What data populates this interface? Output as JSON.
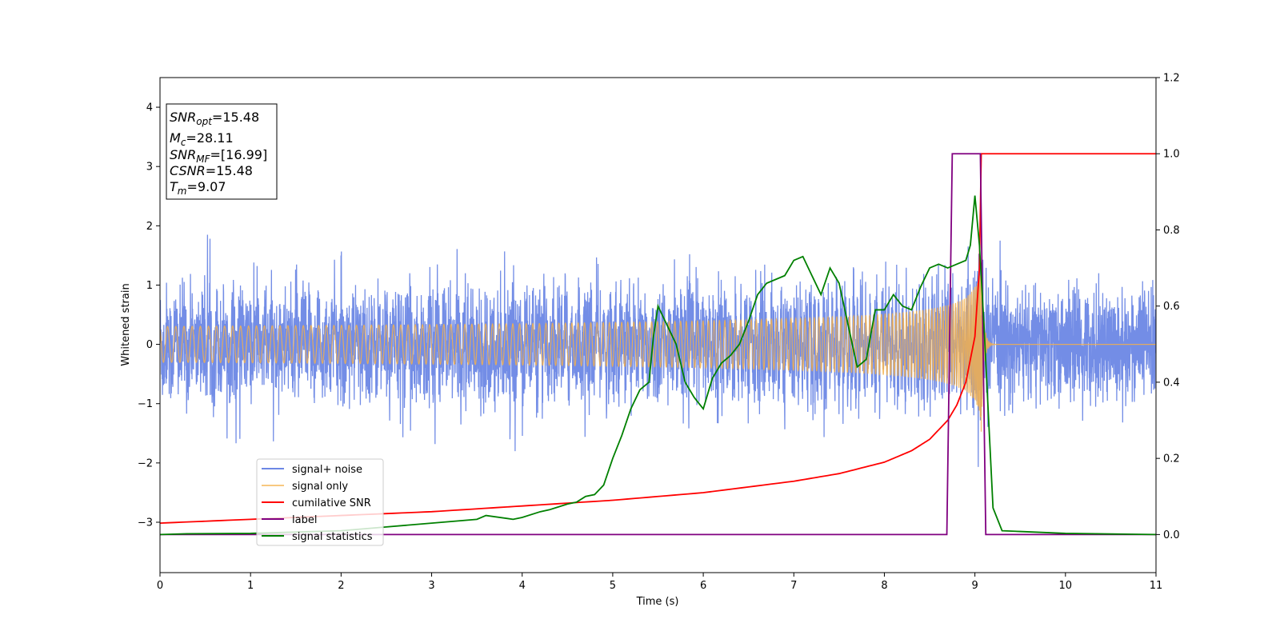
{
  "chart_data": {
    "type": "line",
    "xlabel": "Time (s)",
    "ylabel": "Whitened strain",
    "xlim": [
      0,
      11
    ],
    "ylim_left": [
      -3.85,
      4.5
    ],
    "ylim_right": [
      -0.1,
      1.2
    ],
    "x_ticks": [
      "0",
      "1",
      "2",
      "3",
      "4",
      "5",
      "6",
      "7",
      "8",
      "9",
      "10",
      "11"
    ],
    "y_ticks_left": [
      "−3",
      "−2",
      "−1",
      "0",
      "1",
      "2",
      "3",
      "4"
    ],
    "y_ticks_right": [
      "0.0",
      "0.2",
      "0.4",
      "0.6",
      "0.8",
      "1.0",
      "1.2"
    ],
    "grid": false,
    "legend_position": "lower-left",
    "info_box": {
      "lines": [
        {
          "sym": "SNR",
          "sub": "opt",
          "val": "=15.48"
        },
        {
          "sym": "M",
          "sub": "c",
          "val": "=28.11"
        },
        {
          "sym": "SNR",
          "sub": "MF",
          "val": "=[16.99]"
        },
        {
          "sym": "CSNR",
          "sub": "",
          "val": "=15.48"
        },
        {
          "sym": "T",
          "sub": "m",
          "val": "=9.07"
        }
      ]
    },
    "series": [
      {
        "name": "signal+ noise",
        "axis": "left",
        "color": "#6c87e5",
        "description_values": "noise fluctuating roughly between -1.2 and 1.2 with peaks to about ±1.7 across 0–11 s"
      },
      {
        "name": "signal only",
        "axis": "left",
        "color": "#f5b04a",
        "chirp_peak_time": 9.07,
        "chirp_peak_amplitude": 1.5
      },
      {
        "name": "cumilative SNR",
        "axis": "right",
        "color": "#ff0000",
        "x": [
          0,
          1,
          2,
          3,
          4,
          5,
          6,
          7,
          7.5,
          8,
          8.3,
          8.5,
          8.7,
          8.8,
          8.9,
          9.0,
          9.05,
          9.07,
          11
        ],
        "y": [
          0.03,
          0.04,
          0.05,
          0.06,
          0.075,
          0.09,
          0.11,
          0.14,
          0.16,
          0.19,
          0.22,
          0.25,
          0.3,
          0.34,
          0.4,
          0.52,
          0.7,
          1.0,
          1.0
        ]
      },
      {
        "name": "label",
        "axis": "right",
        "color": "#800080",
        "x": [
          0,
          8.69,
          8.75,
          9.06,
          9.12,
          11
        ],
        "y": [
          0,
          0,
          1,
          1,
          0,
          0
        ]
      },
      {
        "name": "signal statistics",
        "axis": "right",
        "color": "#008000",
        "x": [
          0,
          0.3,
          1,
          2,
          2.5,
          3,
          3.5,
          3.6,
          3.9,
          4.0,
          4.2,
          4.3,
          4.5,
          4.6,
          4.7,
          4.8,
          4.9,
          5.0,
          5.1,
          5.2,
          5.3,
          5.4,
          5.45,
          5.5,
          5.7,
          5.8,
          5.9,
          6.0,
          6.1,
          6.2,
          6.3,
          6.4,
          6.5,
          6.6,
          6.7,
          6.8,
          6.9,
          7.0,
          7.1,
          7.2,
          7.3,
          7.4,
          7.5,
          7.6,
          7.7,
          7.8,
          7.9,
          8.0,
          8.1,
          8.2,
          8.3,
          8.4,
          8.5,
          8.6,
          8.7,
          8.8,
          8.9,
          8.95,
          9.0,
          9.05,
          9.1,
          9.2,
          9.3,
          9.5,
          10,
          11
        ],
        "y": [
          0,
          0.002,
          0.003,
          0.01,
          0.02,
          0.03,
          0.04,
          0.05,
          0.04,
          0.045,
          0.06,
          0.065,
          0.08,
          0.085,
          0.1,
          0.105,
          0.13,
          0.2,
          0.26,
          0.33,
          0.38,
          0.4,
          0.52,
          0.6,
          0.5,
          0.4,
          0.36,
          0.33,
          0.41,
          0.45,
          0.47,
          0.5,
          0.56,
          0.63,
          0.66,
          0.67,
          0.68,
          0.72,
          0.73,
          0.68,
          0.63,
          0.7,
          0.66,
          0.55,
          0.44,
          0.46,
          0.59,
          0.59,
          0.63,
          0.6,
          0.59,
          0.65,
          0.7,
          0.71,
          0.7,
          0.71,
          0.72,
          0.76,
          0.89,
          0.76,
          0.55,
          0.07,
          0.01,
          0.008,
          0.003,
          0.0
        ]
      }
    ]
  }
}
